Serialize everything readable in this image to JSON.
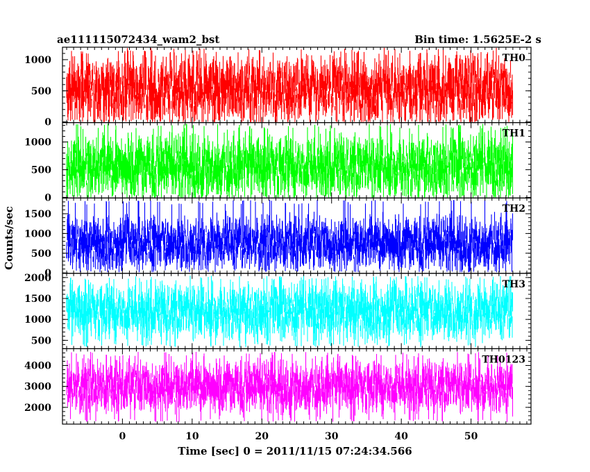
{
  "chart_data": {
    "type": "line",
    "title_left": "ae111115072434_wam2_bst",
    "title_right": "Bin time: 1.5625E-2 s",
    "xlabel": "Time [sec] 0 = 2011/11/15 07:24:34.566",
    "ylabel": "Counts/sec",
    "xlim": [
      -8.6,
      58.6
    ],
    "x_ticks": [
      0,
      10,
      20,
      30,
      40,
      50
    ],
    "panels": [
      {
        "name": "TH0",
        "color": "#ff0000",
        "ylim": [
          -10,
          1200
        ],
        "y_ticks": [
          0,
          500,
          1000
        ],
        "mean": 520,
        "spread": 300,
        "peak": 1190,
        "floor": 0,
        "x_range": [
          -8.0,
          56.0
        ]
      },
      {
        "name": "TH1",
        "color": "#00ff00",
        "ylim": [
          -10,
          1350
        ],
        "y_ticks": [
          0,
          500,
          1000
        ],
        "mean": 560,
        "spread": 320,
        "peak": 1330,
        "floor": 0,
        "x_range": [
          -8.0,
          56.0
        ]
      },
      {
        "name": "TH2",
        "color": "#0000ff",
        "ylim": [
          -10,
          1900
        ],
        "y_ticks": [
          0,
          500,
          1000,
          1500
        ],
        "mean": 760,
        "spread": 380,
        "peak": 1850,
        "floor": 20,
        "x_range": [
          -8.0,
          56.0
        ]
      },
      {
        "name": "TH3",
        "color": "#00ffff",
        "ylim": [
          300,
          2100
        ],
        "y_ticks": [
          500,
          1000,
          1500,
          2000
        ],
        "mean": 1200,
        "spread": 380,
        "peak": 2050,
        "floor": 330,
        "x_range": [
          -8.0,
          56.0
        ]
      },
      {
        "name": "TH0123",
        "color": "#ff00ff",
        "ylim": [
          1200,
          4800
        ],
        "y_ticks": [
          2000,
          3000,
          4000
        ],
        "mean": 3000,
        "spread": 700,
        "peak": 4650,
        "floor": 1300,
        "x_range": [
          -8.0,
          56.0
        ]
      }
    ]
  }
}
